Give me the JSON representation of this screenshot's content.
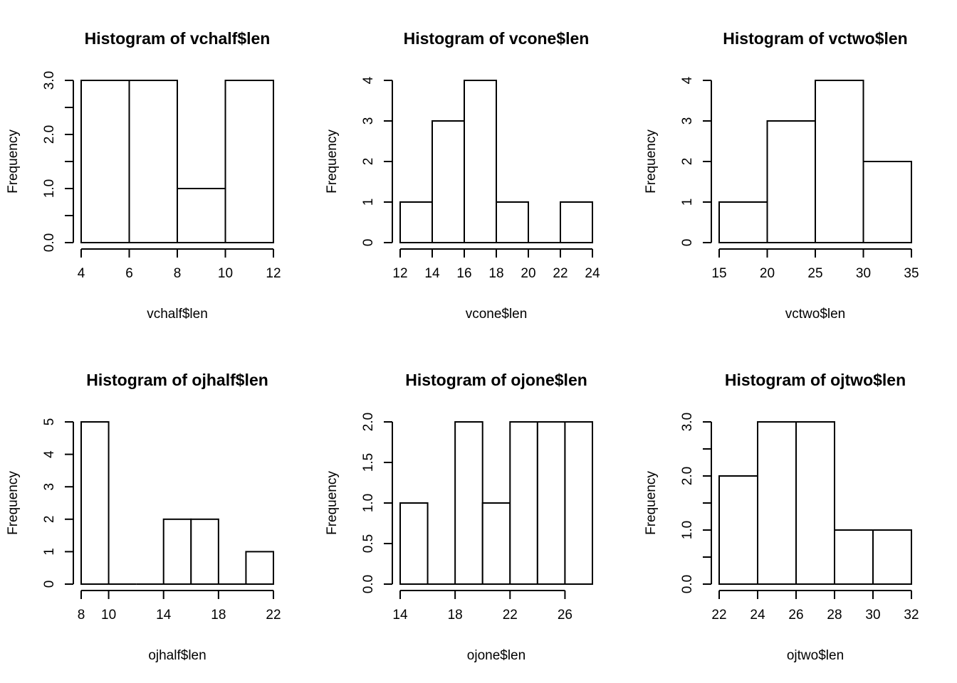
{
  "chart_data": [
    {
      "type": "bar",
      "title": "Histogram of vchalf$len",
      "xlabel": "vchalf$len",
      "ylabel": "Frequency",
      "bin_edges": [
        4,
        6,
        8,
        10,
        12
      ],
      "values": [
        3,
        3,
        1,
        3
      ],
      "xlim": [
        4,
        12
      ],
      "ylim": [
        0,
        3
      ],
      "x_ticks": [
        "4",
        "6",
        "8",
        "10",
        "12"
      ],
      "y_ticks": [
        "0.0",
        "1.0",
        "2.0",
        "3.0"
      ],
      "y_minor_ticks": [
        0,
        0.5,
        1,
        1.5,
        2,
        2.5,
        3
      ]
    },
    {
      "type": "bar",
      "title": "Histogram of vcone$len",
      "xlabel": "vcone$len",
      "ylabel": "Frequency",
      "bin_edges": [
        12,
        14,
        16,
        18,
        20,
        22,
        24
      ],
      "values": [
        1,
        3,
        4,
        1,
        0,
        1
      ],
      "xlim": [
        12,
        24
      ],
      "ylim": [
        0,
        4
      ],
      "x_ticks": [
        "12",
        "14",
        "16",
        "18",
        "20",
        "22",
        "24"
      ],
      "y_ticks": [
        "0",
        "1",
        "2",
        "3",
        "4"
      ]
    },
    {
      "type": "bar",
      "title": "Histogram of vctwo$len",
      "xlabel": "vctwo$len",
      "ylabel": "Frequency",
      "bin_edges": [
        15,
        20,
        25,
        30,
        35
      ],
      "values": [
        1,
        3,
        4,
        2
      ],
      "xlim": [
        15,
        35
      ],
      "ylim": [
        0,
        4
      ],
      "x_ticks": [
        "15",
        "20",
        "25",
        "30",
        "35"
      ],
      "y_ticks": [
        "0",
        "1",
        "2",
        "3",
        "4"
      ]
    },
    {
      "type": "bar",
      "title": "Histogram of ojhalf$len",
      "xlabel": "ojhalf$len",
      "ylabel": "Frequency",
      "bin_edges": [
        8,
        10,
        12,
        14,
        16,
        18,
        20,
        22
      ],
      "values": [
        5,
        0,
        0,
        2,
        2,
        0,
        1
      ],
      "xlim": [
        8,
        22
      ],
      "ylim": [
        0,
        5
      ],
      "x_ticks": [
        "8",
        "10",
        "14",
        "18",
        "22"
      ],
      "y_ticks": [
        "0",
        "1",
        "2",
        "3",
        "4",
        "5"
      ]
    },
    {
      "type": "bar",
      "title": "Histogram of ojone$len",
      "xlabel": "ojone$len",
      "ylabel": "Frequency",
      "bin_edges": [
        14,
        16,
        18,
        20,
        22,
        24,
        26,
        28
      ],
      "values": [
        1,
        0,
        2,
        1,
        2,
        2,
        2
      ],
      "xlim": [
        14,
        28
      ],
      "ylim": [
        0,
        2
      ],
      "x_ticks": [
        "14",
        "18",
        "22",
        "26"
      ],
      "y_ticks": [
        "0.0",
        "0.5",
        "1.0",
        "1.5",
        "2.0"
      ]
    },
    {
      "type": "bar",
      "title": "Histogram of ojtwo$len",
      "xlabel": "ojtwo$len",
      "ylabel": "Frequency",
      "bin_edges": [
        22,
        24,
        26,
        28,
        30,
        32
      ],
      "values": [
        2,
        3,
        3,
        1,
        1
      ],
      "xlim": [
        22,
        32
      ],
      "ylim": [
        0,
        3
      ],
      "x_ticks": [
        "22",
        "24",
        "26",
        "28",
        "30",
        "32"
      ],
      "y_ticks": [
        "0.0",
        "1.0",
        "2.0",
        "3.0"
      ],
      "y_minor_ticks": [
        0,
        0.5,
        1,
        1.5,
        2,
        2.5,
        3
      ]
    }
  ]
}
